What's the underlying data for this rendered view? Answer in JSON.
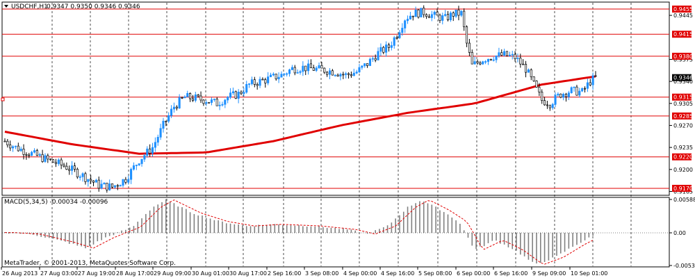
{
  "header": {
    "symbol_label": "USDCHF,H1",
    "ohlc_text": "0.9347 0.9350 0.9346 0.9346"
  },
  "price_scale": {
    "ticks": [
      "0.9445",
      "0.9375",
      "0.9340",
      "0.9305",
      "0.9270",
      "0.9235",
      "0.9200",
      "0.9165"
    ],
    "current_price": "0.9346"
  },
  "level_lines": [
    "0.9455",
    "0.9415",
    "0.9380",
    "0.9315",
    "0.9285",
    "0.9220",
    "0.9170"
  ],
  "macd": {
    "label": "MACD(5,34,5) -0.00034 -0.00096",
    "ticks": [
      "0.00588",
      "0.00",
      "-0.00534"
    ]
  },
  "time_axis": {
    "labels": [
      "26 Aug 2013",
      "27 Aug 03:00",
      "27 Aug 19:00",
      "28 Aug 17:00",
      "29 Aug 09:00",
      "30 Aug 01:00",
      "30 Aug 17:00",
      "2 Sep 16:00",
      "3 Sep 08:00",
      "4 Sep 00:00",
      "4 Sep 16:00",
      "5 Sep 08:00",
      "6 Sep 00:00",
      "6 Sep 16:00",
      "9 Sep 09:00",
      "10 Sep 01:00"
    ]
  },
  "copyright": "MetaTrader, © 2001-2013, MetaQuotes Software Corp.",
  "colors": {
    "bull": "#1e90ff",
    "bear": "#000000",
    "ma": "#e00000",
    "levels": "#e00000",
    "grid": "#000000",
    "macd_hist": "#808080",
    "macd_signal": "#e00000"
  },
  "chart_data": {
    "type": "candlestick",
    "title": "USDCHF,H1",
    "ylim": [
      0.916,
      0.9465
    ],
    "price_path": [
      [
        0,
        0.9245
      ],
      [
        8,
        0.9235
      ],
      [
        20,
        0.9225
      ],
      [
        32,
        0.9215
      ],
      [
        45,
        0.9205
      ],
      [
        58,
        0.919
      ],
      [
        70,
        0.9175
      ],
      [
        80,
        0.9172
      ],
      [
        90,
        0.9185
      ],
      [
        100,
        0.9215
      ],
      [
        110,
        0.9235
      ],
      [
        118,
        0.927
      ],
      [
        126,
        0.93
      ],
      [
        134,
        0.9315
      ],
      [
        142,
        0.9313
      ],
      [
        150,
        0.931
      ],
      [
        158,
        0.9305
      ],
      [
        166,
        0.9315
      ],
      [
        174,
        0.932
      ],
      [
        182,
        0.9335
      ],
      [
        190,
        0.934
      ],
      [
        198,
        0.9345
      ],
      [
        206,
        0.935
      ],
      [
        214,
        0.936
      ],
      [
        222,
        0.9362
      ],
      [
        230,
        0.936
      ],
      [
        238,
        0.9358
      ],
      [
        246,
        0.9355
      ],
      [
        254,
        0.935
      ],
      [
        262,
        0.9355
      ],
      [
        270,
        0.9368
      ],
      [
        278,
        0.9385
      ],
      [
        286,
        0.9395
      ],
      [
        292,
        0.9415
      ],
      [
        298,
        0.944
      ],
      [
        304,
        0.9448
      ],
      [
        312,
        0.945
      ],
      [
        320,
        0.9444
      ],
      [
        328,
        0.944
      ],
      [
        334,
        0.9447
      ],
      [
        340,
        0.9448
      ],
      [
        344,
        0.94
      ],
      [
        348,
        0.9365
      ],
      [
        356,
        0.9375
      ],
      [
        364,
        0.938
      ],
      [
        372,
        0.9382
      ],
      [
        380,
        0.9378
      ],
      [
        388,
        0.936
      ],
      [
        394,
        0.9335
      ],
      [
        400,
        0.931
      ],
      [
        406,
        0.9305
      ],
      [
        414,
        0.932
      ],
      [
        422,
        0.9325
      ],
      [
        430,
        0.9323
      ],
      [
        436,
        0.934
      ],
      [
        440,
        0.9346
      ]
    ],
    "ma_path": [
      [
        0,
        0.926
      ],
      [
        50,
        0.924
      ],
      [
        100,
        0.9225
      ],
      [
        150,
        0.9227
      ],
      [
        200,
        0.9245
      ],
      [
        250,
        0.927
      ],
      [
        300,
        0.929
      ],
      [
        350,
        0.9305
      ],
      [
        400,
        0.9335
      ],
      [
        440,
        0.9348
      ]
    ],
    "macd_hist_path": [
      [
        0,
        5e-05
      ],
      [
        20,
        -0.0002
      ],
      [
        45,
        -0.0015
      ],
      [
        60,
        -0.0025
      ],
      [
        75,
        -0.0008
      ],
      [
        95,
        0.001
      ],
      [
        110,
        0.0045
      ],
      [
        120,
        0.0058
      ],
      [
        140,
        0.0035
      ],
      [
        160,
        0.002
      ],
      [
        180,
        0.0012
      ],
      [
        200,
        0.0015
      ],
      [
        230,
        0.0012
      ],
      [
        255,
        0.0006
      ],
      [
        270,
        -0.0002
      ],
      [
        285,
        0.0012
      ],
      [
        300,
        0.0045
      ],
      [
        310,
        0.0058
      ],
      [
        325,
        0.004
      ],
      [
        338,
        0.002
      ],
      [
        350,
        -0.0028
      ],
      [
        365,
        -0.0012
      ],
      [
        380,
        -0.0028
      ],
      [
        395,
        -0.0052
      ],
      [
        410,
        -0.004
      ],
      [
        425,
        -0.002
      ],
      [
        440,
        -0.0003
      ]
    ],
    "macd_ylim": [
      -0.00534,
      0.00588
    ]
  }
}
